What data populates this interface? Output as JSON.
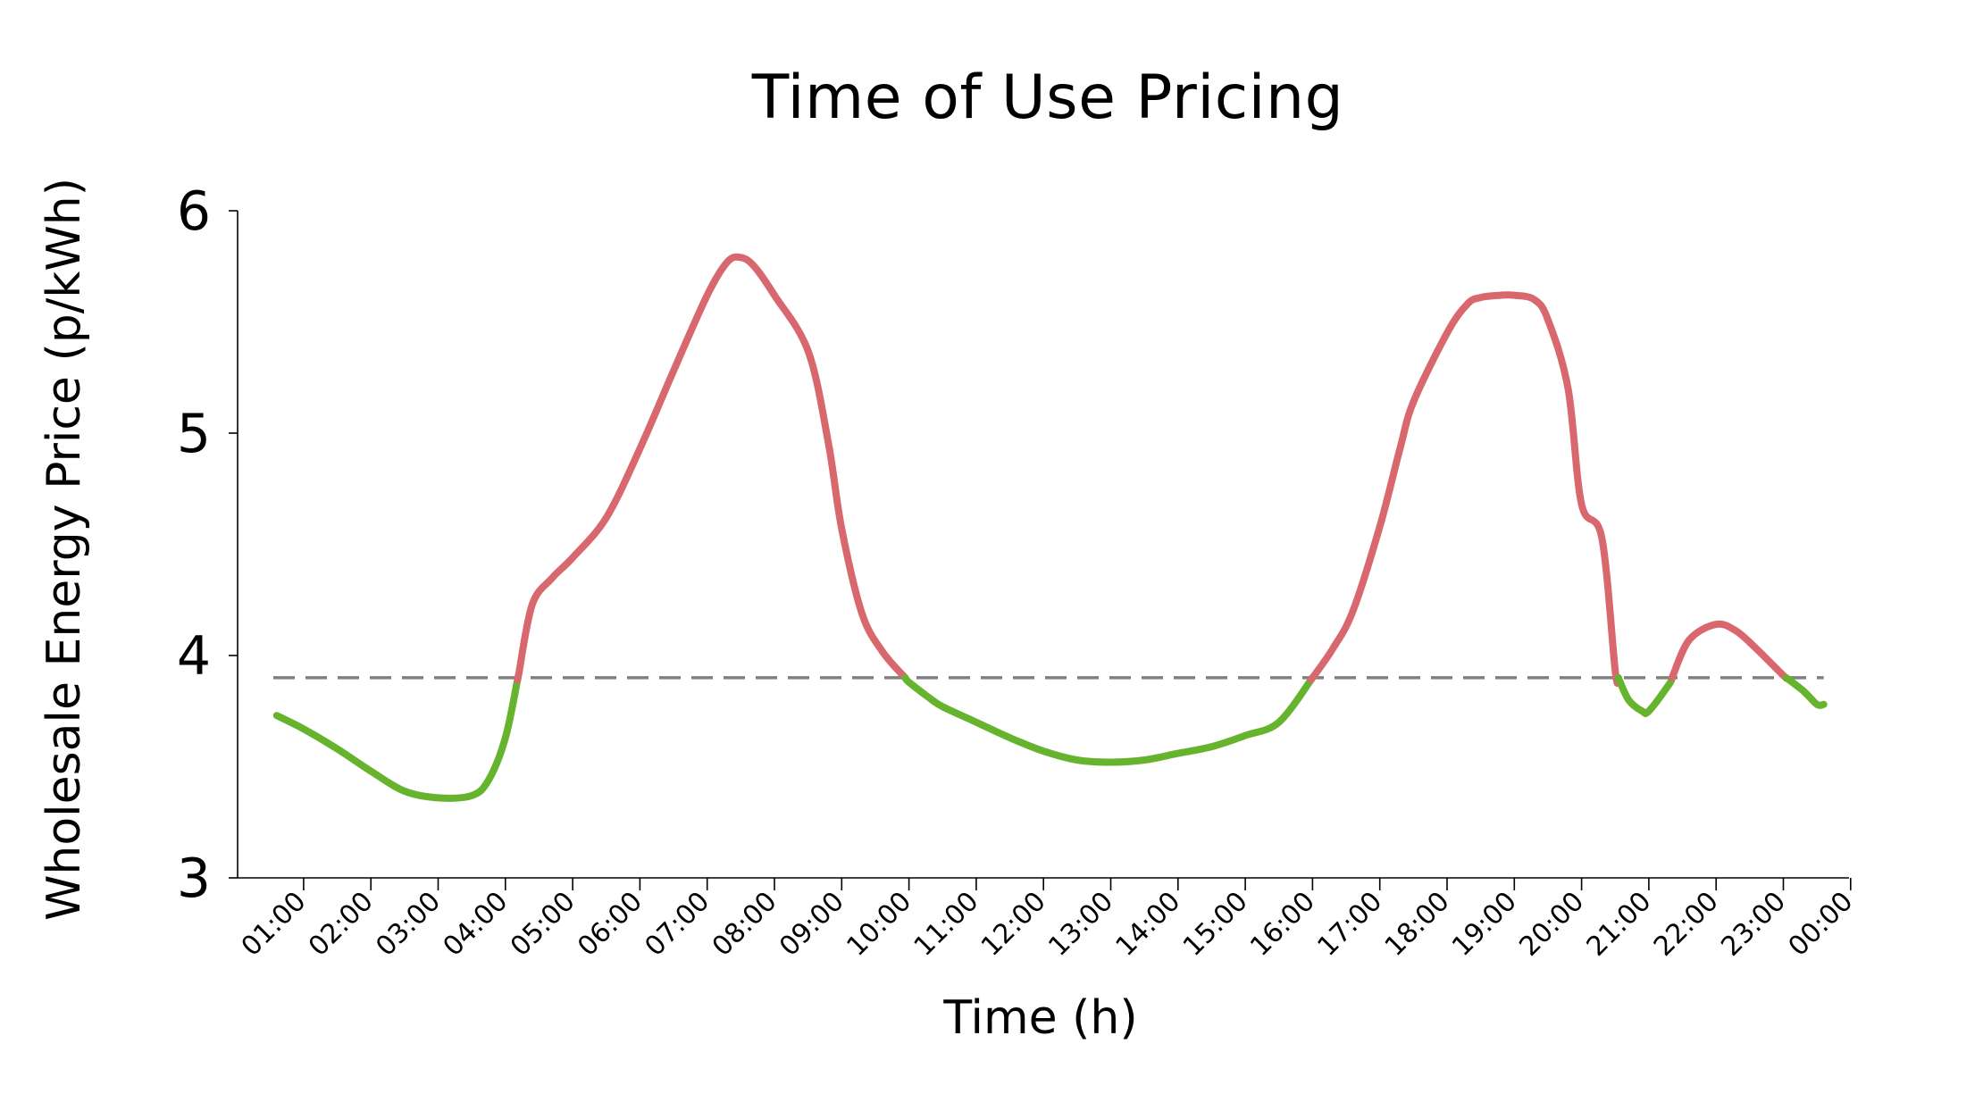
{
  "chart_data": {
    "type": "line",
    "title": "Time of Use Pricing",
    "xlabel": "Time (h)",
    "ylabel": "Wholesale Energy Price (p/kWh)",
    "ylim": [
      3,
      6
    ],
    "yticks": [
      "3",
      "4",
      "5",
      "6"
    ],
    "categories": [
      "01:00",
      "02:00",
      "03:00",
      "04:00",
      "05:00",
      "06:00",
      "07:00",
      "08:00",
      "09:00",
      "10:00",
      "11:00",
      "12:00",
      "13:00",
      "14:00",
      "15:00",
      "16:00",
      "17:00",
      "18:00",
      "19:00",
      "20:00",
      "21:00",
      "22:00",
      "23:00",
      "00:00"
    ],
    "threshold": 3.9,
    "colors": {
      "above": "#d9686e",
      "below": "#66b32e",
      "threshold": "#808080",
      "axis": "#000000"
    },
    "x": [
      0.6,
      1.0,
      1.5,
      2.0,
      2.5,
      3.0,
      3.5,
      3.75,
      4.0,
      4.2,
      4.4,
      4.7,
      5.0,
      5.5,
      6.0,
      6.5,
      7.0,
      7.3,
      7.5,
      7.7,
      8.0,
      8.5,
      8.8,
      9.0,
      9.3,
      9.6,
      10.0,
      10.3,
      10.5,
      11.0,
      11.5,
      12.0,
      12.5,
      13.0,
      13.5,
      14.0,
      14.5,
      15.0,
      15.5,
      16.0,
      16.3,
      16.6,
      17.0,
      17.3,
      17.5,
      18.0,
      18.3,
      18.5,
      18.8,
      19.0,
      19.3,
      19.5,
      19.8,
      20.0,
      20.3,
      20.5,
      20.7,
      20.9,
      21.0,
      21.3,
      21.6,
      22.0,
      22.3,
      22.6,
      23.0,
      23.3,
      23.5,
      23.6
    ],
    "y": [
      3.73,
      3.67,
      3.58,
      3.48,
      3.39,
      3.36,
      3.37,
      3.44,
      3.63,
      3.92,
      4.23,
      4.35,
      4.44,
      4.62,
      4.93,
      5.28,
      5.62,
      5.77,
      5.79,
      5.75,
      5.62,
      5.37,
      4.96,
      4.57,
      4.19,
      4.02,
      3.88,
      3.81,
      3.77,
      3.7,
      3.63,
      3.57,
      3.53,
      3.52,
      3.53,
      3.56,
      3.59,
      3.64,
      3.7,
      3.9,
      4.03,
      4.2,
      4.58,
      4.93,
      5.14,
      5.45,
      5.58,
      5.61,
      5.62,
      5.62,
      5.6,
      5.51,
      5.2,
      4.68,
      4.53,
      3.93,
      3.8,
      3.75,
      3.75,
      3.87,
      4.07,
      4.14,
      4.11,
      4.03,
      3.91,
      3.84,
      3.78,
      3.78
    ]
  }
}
